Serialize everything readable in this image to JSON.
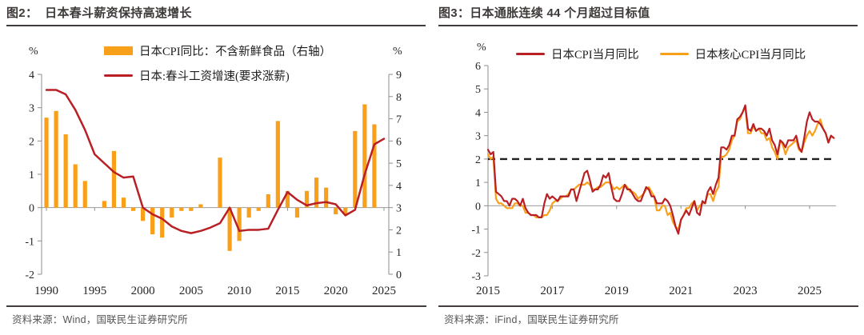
{
  "chart_data": [
    {
      "type": "bar",
      "title": "图2：  日本春斗薪资保持高速增长",
      "source": "资料来源：Wind，国联民生证券研究所",
      "legend": [
        {
          "label": "日本CPI同比：不含新鲜食品（右轴）",
          "marker": "bar",
          "color": "#F9A01B"
        },
        {
          "label": "日本:春斗工资增速(要求涨薪)",
          "marker": "line",
          "color": "#B92025"
        }
      ],
      "left_axis": {
        "label": "%",
        "min": -2,
        "max": 4,
        "ticks": [
          4,
          3,
          2,
          1,
          0,
          -1,
          -2
        ]
      },
      "right_axis": {
        "label": "%",
        "min": 0,
        "max": 9,
        "ticks": [
          9,
          8,
          7,
          6,
          5,
          4,
          3,
          2,
          1,
          0
        ]
      },
      "x_ticks": [
        1990,
        1995,
        2000,
        2005,
        2010,
        2015,
        2020,
        2025
      ],
      "x_years": [
        1990,
        1991,
        1992,
        1993,
        1994,
        1995,
        1996,
        1997,
        1998,
        1999,
        2000,
        2001,
        2002,
        2003,
        2004,
        2005,
        2006,
        2007,
        2008,
        2009,
        2010,
        2011,
        2012,
        2013,
        2014,
        2015,
        2016,
        2017,
        2018,
        2019,
        2020,
        2021,
        2022,
        2023,
        2024,
        2025
      ],
      "bar_series": {
        "name": "日本CPI同比：不含新鲜食品（右轴）",
        "values": [
          2.7,
          2.9,
          2.2,
          1.3,
          0.8,
          0,
          0.2,
          1.7,
          0.3,
          -0.1,
          -0.4,
          -0.8,
          -0.9,
          -0.3,
          -0.1,
          -0.1,
          0.1,
          0,
          1.5,
          -1.3,
          -1.0,
          -0.3,
          -0.1,
          0.4,
          2.6,
          0.5,
          -0.3,
          0.5,
          0.9,
          0.6,
          -0.2,
          -0.2,
          2.3,
          3.1,
          2.5,
          null
        ]
      },
      "line_series": {
        "name": "日本:春斗工资增速(要求涨薪)",
        "axis": "right",
        "values": [
          8.3,
          8.3,
          8.1,
          7.4,
          6.5,
          5.4,
          5.0,
          4.6,
          4.35,
          4.4,
          3.0,
          2.7,
          2.5,
          2.15,
          1.95,
          1.85,
          1.95,
          2.1,
          2.3,
          3.0,
          1.95,
          2.0,
          2.0,
          2.05,
          2.9,
          3.7,
          3.35,
          3.1,
          3.2,
          3.25,
          3.15,
          2.65,
          2.9,
          4.5,
          5.85,
          6.1
        ]
      }
    },
    {
      "type": "line",
      "title": "图3：日本通胀连续 44 个月超过目标值",
      "source": "资料来源：iFind，国联民生证券研究所",
      "y_axis": {
        "label": "%",
        "min": -3,
        "max": 6,
        "ticks": [
          6,
          5,
          4,
          3,
          2,
          1,
          0,
          -1,
          -2,
          -3
        ]
      },
      "x_ticks": [
        2015,
        2017,
        2019,
        2021,
        2023,
        2025
      ],
      "x_range": [
        2015,
        2026
      ],
      "target_line": 2,
      "legend": [
        {
          "label": "日本CPI当月同比",
          "marker": "line",
          "color": "#B92025"
        },
        {
          "label": "日本核心CPI当月同比",
          "marker": "line",
          "color": "#F9A01B"
        }
      ],
      "series": [
        {
          "name": "日本CPI当月同比",
          "color": "#B92025",
          "start_year": 2015,
          "freq": "monthly",
          "values": [
            2.4,
            2.2,
            2.3,
            0.6,
            0.5,
            0.4,
            0.2,
            0.2,
            0.0,
            0.3,
            0.3,
            0.2,
            0.0,
            0.3,
            -0.1,
            -0.3,
            -0.4,
            -0.4,
            -0.4,
            -0.5,
            -0.5,
            0.1,
            0.5,
            0.3,
            0.4,
            0.3,
            0.2,
            0.4,
            0.4,
            0.4,
            0.4,
            0.7,
            0.7,
            0.2,
            0.6,
            1.0,
            1.4,
            1.5,
            1.1,
            0.6,
            0.7,
            0.7,
            0.9,
            1.3,
            1.2,
            1.4,
            0.8,
            0.3,
            0.2,
            0.2,
            0.5,
            0.9,
            0.7,
            0.7,
            0.5,
            0.3,
            0.2,
            0.2,
            0.5,
            0.8,
            0.7,
            0.4,
            0.4,
            0.1,
            0.1,
            0.1,
            0.3,
            0.2,
            0.0,
            -0.4,
            -0.9,
            -1.2,
            -0.6,
            -0.4,
            -0.2,
            -0.4,
            -0.1,
            0.2,
            -0.3,
            -0.4,
            0.2,
            0.1,
            0.6,
            0.8,
            0.5,
            0.9,
            1.2,
            2.5,
            2.5,
            2.4,
            2.6,
            3.0,
            3.0,
            3.7,
            3.8,
            4.0,
            4.3,
            3.3,
            3.2,
            3.5,
            3.2,
            3.3,
            3.3,
            3.2,
            3.0,
            3.3,
            2.8,
            2.6,
            2.2,
            2.8,
            2.7,
            2.5,
            2.8,
            2.8,
            2.8,
            3.0,
            2.5,
            2.3,
            2.9,
            3.6,
            4.0,
            3.7,
            3.6,
            3.6,
            3.5,
            3.3,
            3.1,
            2.7,
            3.0,
            2.9
          ]
        },
        {
          "name": "日本核心CPI当月同比",
          "color": "#F9A01B",
          "start_year": 2015,
          "freq": "monthly",
          "values": [
            2.2,
            2.0,
            2.1,
            0.3,
            0.1,
            0.1,
            0.0,
            -0.1,
            -0.1,
            -0.1,
            0.1,
            0.1,
            0.0,
            0.0,
            -0.3,
            -0.3,
            -0.4,
            -0.4,
            -0.5,
            -0.5,
            -0.5,
            -0.4,
            -0.4,
            -0.2,
            0.1,
            0.2,
            0.2,
            0.3,
            0.4,
            0.4,
            0.5,
            0.7,
            0.7,
            0.8,
            0.9,
            0.9,
            0.9,
            1.0,
            0.9,
            0.7,
            0.7,
            0.8,
            0.8,
            0.9,
            1.0,
            1.0,
            0.9,
            0.7,
            0.8,
            0.7,
            0.8,
            0.9,
            0.8,
            0.6,
            0.6,
            0.5,
            0.3,
            0.4,
            0.5,
            0.7,
            0.8,
            0.6,
            0.4,
            -0.2,
            -0.2,
            0.0,
            0.0,
            -0.4,
            -0.3,
            -0.7,
            -0.9,
            -1.0,
            -0.6,
            -0.4,
            -0.1,
            -0.1,
            0.1,
            0.2,
            -0.2,
            0.0,
            0.1,
            0.1,
            0.5,
            0.5,
            0.2,
            0.6,
            0.8,
            2.1,
            2.1,
            2.2,
            2.4,
            2.8,
            3.0,
            3.6,
            3.7,
            4.0,
            4.2,
            3.1,
            3.1,
            3.4,
            3.2,
            3.3,
            3.1,
            3.1,
            2.8,
            2.9,
            2.5,
            2.3,
            2.0,
            2.8,
            2.6,
            2.2,
            2.5,
            2.6,
            2.7,
            2.8,
            2.4,
            2.3,
            2.7,
            3.0,
            3.2,
            3.0,
            3.2,
            3.5,
            3.7,
            3.3,
            3.1,
            2.7,
            3.0,
            2.9
          ]
        }
      ]
    }
  ]
}
